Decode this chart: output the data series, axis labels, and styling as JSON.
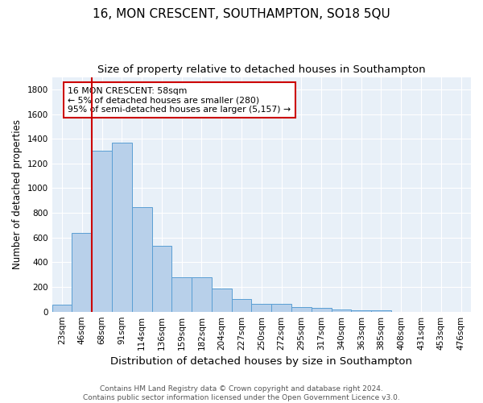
{
  "title": "16, MON CRESCENT, SOUTHAMPTON, SO18 5QU",
  "subtitle": "Size of property relative to detached houses in Southampton",
  "xlabel": "Distribution of detached houses by size in Southampton",
  "ylabel": "Number of detached properties",
  "categories": [
    "23sqm",
    "46sqm",
    "68sqm",
    "91sqm",
    "114sqm",
    "136sqm",
    "159sqm",
    "182sqm",
    "204sqm",
    "227sqm",
    "250sqm",
    "272sqm",
    "295sqm",
    "317sqm",
    "340sqm",
    "363sqm",
    "385sqm",
    "408sqm",
    "431sqm",
    "453sqm",
    "476sqm"
  ],
  "values": [
    55,
    640,
    1305,
    1370,
    845,
    535,
    280,
    280,
    185,
    105,
    65,
    65,
    35,
    30,
    18,
    8,
    12,
    0,
    0,
    0,
    0
  ],
  "bar_color": "#b8d0ea",
  "bar_edge_color": "#5a9fd4",
  "bg_color": "#e8f0f8",
  "grid_color": "#ffffff",
  "vline_color": "#cc0000",
  "annotation_text": "16 MON CRESCENT: 58sqm\n← 5% of detached houses are smaller (280)\n95% of semi-detached houses are larger (5,157) →",
  "annotation_box_color": "#ffffff",
  "annotation_box_edge": "#cc0000",
  "ylim": [
    0,
    1900
  ],
  "yticks": [
    0,
    200,
    400,
    600,
    800,
    1000,
    1200,
    1400,
    1600,
    1800
  ],
  "footer": "Contains HM Land Registry data © Crown copyright and database right 2024.\nContains public sector information licensed under the Open Government Licence v3.0.",
  "title_fontsize": 11,
  "subtitle_fontsize": 9.5,
  "xlabel_fontsize": 9.5,
  "ylabel_fontsize": 8.5,
  "tick_fontsize": 7.5,
  "footer_fontsize": 6.5,
  "annotation_fontsize": 7.8
}
